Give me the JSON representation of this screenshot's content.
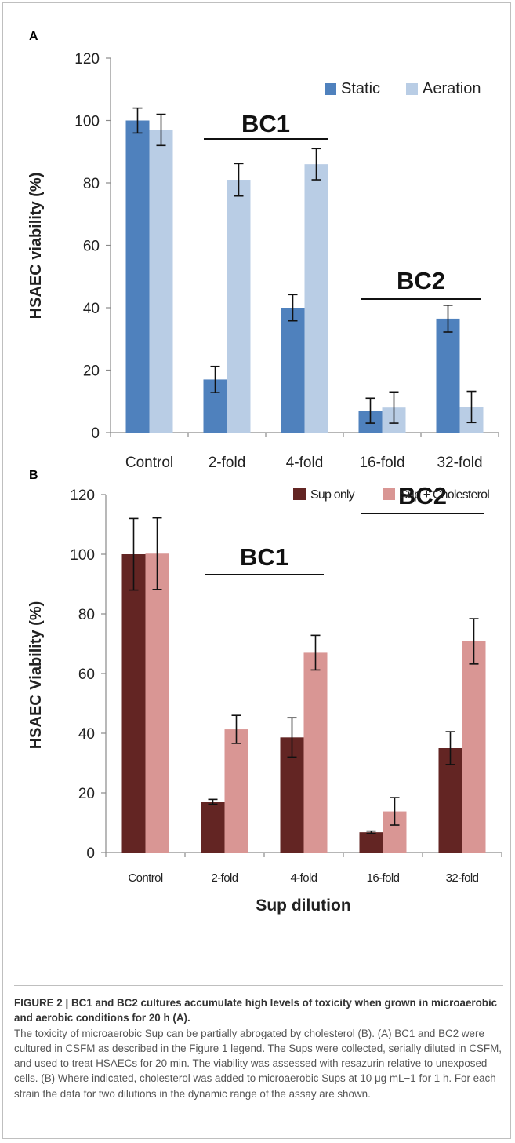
{
  "chart_data": [
    {
      "panel": "A",
      "type": "bar",
      "ylabel": "HSAEC viability (%)",
      "xlabel": "",
      "ylim": [
        0,
        120
      ],
      "yticks": [
        "0",
        "20",
        "40",
        "60",
        "80",
        "100",
        "120"
      ],
      "categories": [
        "Control",
        "2-fold",
        "4-fold",
        "16-fold",
        "32-fold"
      ],
      "legend_position": "top-right",
      "series": [
        {
          "name": "Static",
          "color": "#4f81bd",
          "values": [
            100,
            17,
            40,
            7,
            36.5
          ],
          "errors": [
            4,
            4.2,
            4.2,
            4,
            4.3
          ]
        },
        {
          "name": "Aeration",
          "color": "#b9cde5",
          "values": [
            97,
            81,
            86,
            8,
            8.2
          ],
          "errors": [
            5,
            5.2,
            5,
            5,
            5
          ]
        }
      ],
      "groups": [
        {
          "label": "BC1",
          "from": 1,
          "to": 2
        },
        {
          "label": "BC2",
          "from": 3,
          "to": 4
        }
      ]
    },
    {
      "panel": "B",
      "type": "bar",
      "ylabel": "HSAEC Viability (%)",
      "xlabel": "Sup dilution",
      "ylim": [
        0,
        120
      ],
      "yticks": [
        "0",
        "20",
        "40",
        "60",
        "80",
        "100",
        "120"
      ],
      "categories": [
        "Control",
        "2-fold",
        "4-fold",
        "16-fold",
        "32-fold"
      ],
      "legend_position": "top-right",
      "series": [
        {
          "name": "Sup only",
          "color": "#632523",
          "values": [
            100,
            17,
            38.6,
            6.8,
            35
          ],
          "errors": [
            12,
            0.8,
            6.6,
            0.4,
            5.5
          ]
        },
        {
          "name": "Sup + Cholesterol",
          "color": "#d99694",
          "values": [
            100.2,
            41.3,
            67,
            13.8,
            70.8
          ],
          "errors": [
            12,
            4.7,
            5.8,
            4.6,
            7.6
          ]
        }
      ],
      "groups": [
        {
          "label": "BC1",
          "from": 1,
          "to": 2
        },
        {
          "label": "BC2",
          "from": 3,
          "to": 4
        }
      ]
    }
  ],
  "caption": {
    "heading": "FIGURE 2 | BC1 and BC2 cultures accumulate high levels of toxicity when grown in microaerobic and aerobic conditions for 20 h (A).",
    "body": "The toxicity of microaerobic Sup can be partially abrogated by cholesterol (B). (A) BC1 and BC2 were cultured in CSFM as described in the Figure 1 legend. The Sups were collected, serially diluted in CSFM, and used to treat HSAECs for 20 min. The viability was assessed with resazurin relative to unexposed cells. (B) Where indicated, cholesterol was added to microaerobic Sups at 10 μg mL−1 for 1 h. For each strain the data for two dilutions in the dynamic range of the assay are shown."
  }
}
